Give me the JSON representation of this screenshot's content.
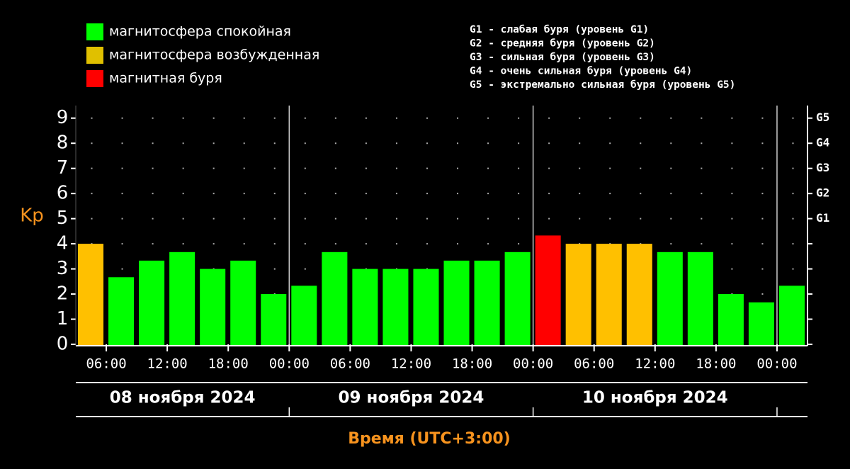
{
  "chart_data": {
    "type": "bar",
    "y_label": "Kp",
    "x_label": "Время (UTC+3:00)",
    "x": [
      3,
      6,
      9,
      12,
      15,
      18,
      21,
      24,
      27,
      30,
      33,
      36,
      39,
      42,
      45,
      48,
      51,
      54,
      57,
      60,
      63,
      66,
      69,
      72
    ],
    "values": [
      4,
      2.67,
      3.33,
      3.67,
      3,
      3.33,
      2,
      2.33,
      3.67,
      3,
      3,
      3,
      3.33,
      3.33,
      3.67,
      4.33,
      4,
      4,
      4,
      3.67,
      3.67,
      2,
      1.67,
      2.33
    ],
    "colors": [
      "#ffc000",
      "#00ff00",
      "#00ff00",
      "#00ff00",
      "#00ff00",
      "#00ff00",
      "#00ff00",
      "#00ff00",
      "#00ff00",
      "#00ff00",
      "#00ff00",
      "#00ff00",
      "#00ff00",
      "#00ff00",
      "#00ff00",
      "#ff0000",
      "#ffc000",
      "#ffc000",
      "#ffc000",
      "#00ff00",
      "#00ff00",
      "#00ff00",
      "#00ff00",
      "#00ff00"
    ],
    "legend": [
      {
        "label": "магнитосфера спокойная",
        "color": "#00ff00"
      },
      {
        "label": "магнитосфера возбужденная",
        "color": "#e0c000"
      },
      {
        "label": "магнитная буря",
        "color": "#ff0000"
      }
    ],
    "storm_legend": [
      "G1 - слабая буря (уровень G1)",
      "G2 - средняя буря (уровень G2)",
      "G3 - сильная буря (уровень G3)",
      "G4 - очень сильная буря (уровень G4)",
      "G5 - экстремально сильная буря (уровень G5)"
    ],
    "days": [
      "08 ноября 2024",
      "09 ноября 2024",
      "10 ноября 2024"
    ],
    "xlim": [
      3,
      75
    ],
    "xticks": [
      {
        "value": 6,
        "label": "06:00"
      },
      {
        "value": 12,
        "label": "12:00"
      },
      {
        "value": 18,
        "label": "18:00"
      },
      {
        "value": 24,
        "label": "00:00"
      },
      {
        "value": 30,
        "label": "06:00"
      },
      {
        "value": 36,
        "label": "12:00"
      },
      {
        "value": 42,
        "label": "18:00"
      },
      {
        "value": 48,
        "label": "00:00"
      },
      {
        "value": 54,
        "label": "06:00"
      },
      {
        "value": 60,
        "label": "12:00"
      },
      {
        "value": 66,
        "label": "18:00"
      },
      {
        "value": 72,
        "label": "00:00"
      }
    ],
    "ylim": [
      0,
      9.5
    ],
    "yticks": [
      0,
      1,
      2,
      3,
      4,
      5,
      6,
      7,
      8,
      9
    ],
    "y2lim": [
      0,
      9.5
    ],
    "y2ticks": [
      {
        "value": 5,
        "label": "G1"
      },
      {
        "value": 6,
        "label": "G2"
      },
      {
        "value": 7,
        "label": "G3"
      },
      {
        "value": 8,
        "label": "G4"
      },
      {
        "value": 9,
        "label": "G5"
      }
    ],
    "grid": true
  }
}
